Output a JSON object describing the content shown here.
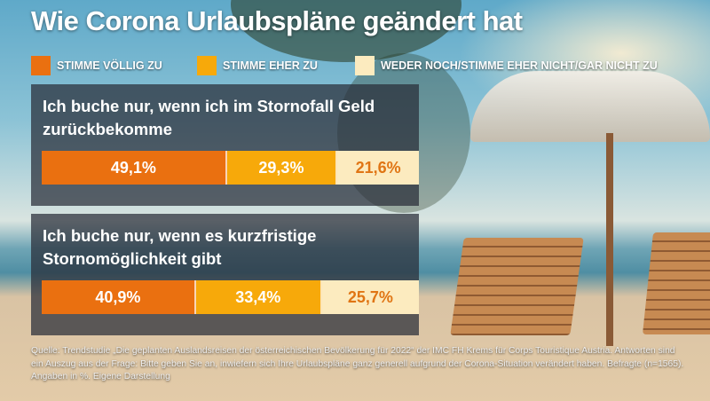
{
  "chart_data": {
    "type": "stacked-bar",
    "title": "Wie Corona Urlaubspläne geändert hat",
    "categories": [
      "Ich buche nur, wenn ich im Stornofall Geld zurückbekomme",
      "Ich buche nur, wenn es kurzfristige Stornomöglichkeit gibt"
    ],
    "series": [
      {
        "name": "STIMME VÖLLIG ZU",
        "color": "#ea7010",
        "values": [
          49.1,
          40.9
        ],
        "value_labels": [
          "49,1%",
          "40,9%"
        ],
        "label_color": "#ffffff"
      },
      {
        "name": "STIMME EHER ZU",
        "color": "#f7a90a",
        "values": [
          29.3,
          33.4
        ],
        "value_labels": [
          "29,3%",
          "33,4%"
        ],
        "label_color": "#ffffff"
      },
      {
        "name": "WEDER NOCH/STIMME EHER NICHT/GAR NICHT ZU",
        "color": "#fcebbf",
        "values": [
          21.6,
          25.7
        ],
        "value_labels": [
          "21,6%",
          "25,7%"
        ],
        "label_color": "#e07514"
      }
    ],
    "xlim": [
      0,
      100
    ],
    "source": "Quelle: Trendstudie „Die geplanten Auslandsreisen der österreichischen Bevölkerung für 2022“ der IMC FH Krems für Corps Touristique Austria. Antworten sind ein Auszug aus der Frage: Bitte geben Sie an, inwiefern sich Ihre Urlaubspläne ganz generell aufgrund der Corona-Situation verändert haben. Befragte (n=1565). Angaben in %. Eigene Darstellung"
  }
}
